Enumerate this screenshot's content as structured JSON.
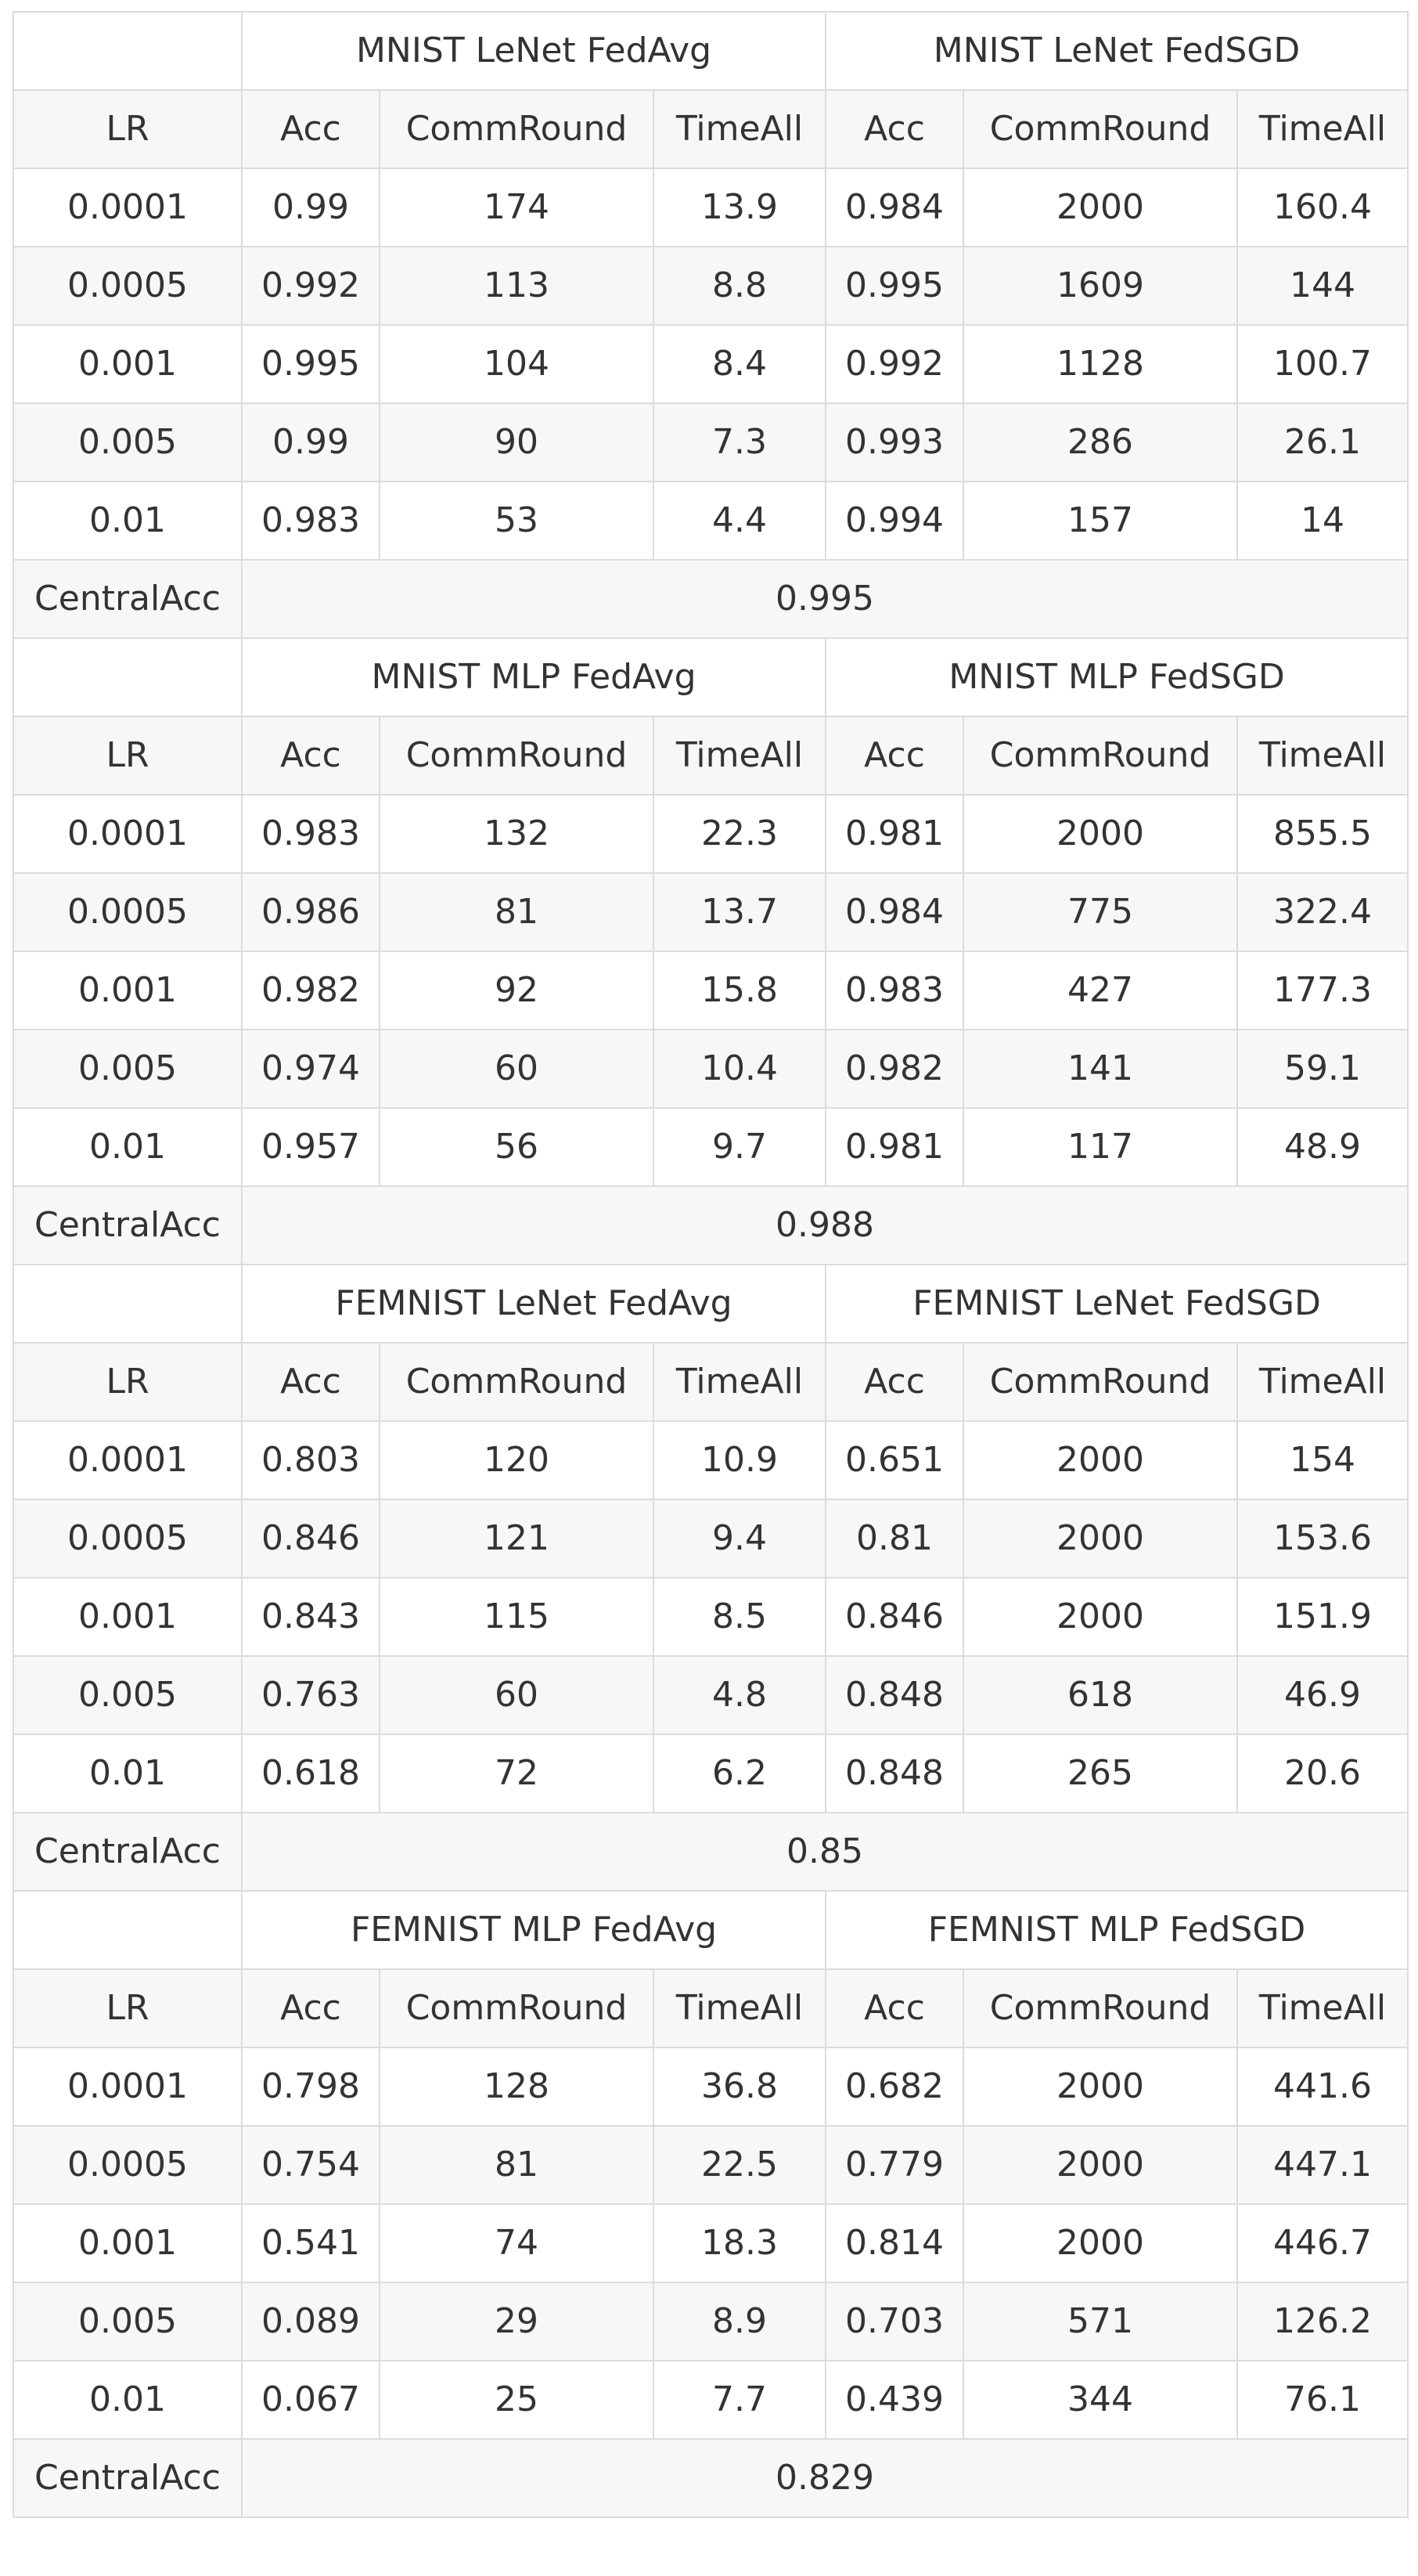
{
  "columns": {
    "lr": "LR",
    "acc": "Acc",
    "comm_round": "CommRound",
    "time_all": "TimeAll",
    "central_acc": "CentralAcc"
  },
  "blocks": [
    {
      "left_title": "MNIST LeNet FedAvg",
      "right_title": "MNIST LeNet FedSGD",
      "rows": [
        {
          "lr": "0.0001",
          "a_acc": "0.99",
          "a_round": "174",
          "a_time": "13.9",
          "b_acc": "0.984",
          "b_round": "2000",
          "b_time": "160.4"
        },
        {
          "lr": "0.0005",
          "a_acc": "0.992",
          "a_round": "113",
          "a_time": "8.8",
          "b_acc": "0.995",
          "b_round": "1609",
          "b_time": "144"
        },
        {
          "lr": "0.001",
          "a_acc": "0.995",
          "a_round": "104",
          "a_time": "8.4",
          "b_acc": "0.992",
          "b_round": "1128",
          "b_time": "100.7"
        },
        {
          "lr": "0.005",
          "a_acc": "0.99",
          "a_round": "90",
          "a_time": "7.3",
          "b_acc": "0.993",
          "b_round": "286",
          "b_time": "26.1"
        },
        {
          "lr": "0.01",
          "a_acc": "0.983",
          "a_round": "53",
          "a_time": "4.4",
          "b_acc": "0.994",
          "b_round": "157",
          "b_time": "14"
        }
      ],
      "central_acc": "0.995"
    },
    {
      "left_title": "MNIST MLP FedAvg",
      "right_title": "MNIST MLP FedSGD",
      "rows": [
        {
          "lr": "0.0001",
          "a_acc": "0.983",
          "a_round": "132",
          "a_time": "22.3",
          "b_acc": "0.981",
          "b_round": "2000",
          "b_time": "855.5"
        },
        {
          "lr": "0.0005",
          "a_acc": "0.986",
          "a_round": "81",
          "a_time": "13.7",
          "b_acc": "0.984",
          "b_round": "775",
          "b_time": "322.4"
        },
        {
          "lr": "0.001",
          "a_acc": "0.982",
          "a_round": "92",
          "a_time": "15.8",
          "b_acc": "0.983",
          "b_round": "427",
          "b_time": "177.3"
        },
        {
          "lr": "0.005",
          "a_acc": "0.974",
          "a_round": "60",
          "a_time": "10.4",
          "b_acc": "0.982",
          "b_round": "141",
          "b_time": "59.1"
        },
        {
          "lr": "0.01",
          "a_acc": "0.957",
          "a_round": "56",
          "a_time": "9.7",
          "b_acc": "0.981",
          "b_round": "117",
          "b_time": "48.9"
        }
      ],
      "central_acc": "0.988"
    },
    {
      "left_title": "FEMNIST LeNet FedAvg",
      "right_title": "FEMNIST LeNet FedSGD",
      "rows": [
        {
          "lr": "0.0001",
          "a_acc": "0.803",
          "a_round": "120",
          "a_time": "10.9",
          "b_acc": "0.651",
          "b_round": "2000",
          "b_time": "154"
        },
        {
          "lr": "0.0005",
          "a_acc": "0.846",
          "a_round": "121",
          "a_time": "9.4",
          "b_acc": "0.81",
          "b_round": "2000",
          "b_time": "153.6"
        },
        {
          "lr": "0.001",
          "a_acc": "0.843",
          "a_round": "115",
          "a_time": "8.5",
          "b_acc": "0.846",
          "b_round": "2000",
          "b_time": "151.9"
        },
        {
          "lr": "0.005",
          "a_acc": "0.763",
          "a_round": "60",
          "a_time": "4.8",
          "b_acc": "0.848",
          "b_round": "618",
          "b_time": "46.9"
        },
        {
          "lr": "0.01",
          "a_acc": "0.618",
          "a_round": "72",
          "a_time": "6.2",
          "b_acc": "0.848",
          "b_round": "265",
          "b_time": "20.6"
        }
      ],
      "central_acc": "0.85"
    },
    {
      "left_title": "FEMNIST MLP FedAvg",
      "right_title": "FEMNIST MLP FedSGD",
      "rows": [
        {
          "lr": "0.0001",
          "a_acc": "0.798",
          "a_round": "128",
          "a_time": "36.8",
          "b_acc": "0.682",
          "b_round": "2000",
          "b_time": "441.6"
        },
        {
          "lr": "0.0005",
          "a_acc": "0.754",
          "a_round": "81",
          "a_time": "22.5",
          "b_acc": "0.779",
          "b_round": "2000",
          "b_time": "447.1"
        },
        {
          "lr": "0.001",
          "a_acc": "0.541",
          "a_round": "74",
          "a_time": "18.3",
          "b_acc": "0.814",
          "b_round": "2000",
          "b_time": "446.7"
        },
        {
          "lr": "0.005",
          "a_acc": "0.089",
          "a_round": "29",
          "a_time": "8.9",
          "b_acc": "0.703",
          "b_round": "571",
          "b_time": "126.2"
        },
        {
          "lr": "0.01",
          "a_acc": "0.067",
          "a_round": "25",
          "a_time": "7.7",
          "b_acc": "0.439",
          "b_round": "344",
          "b_time": "76.1"
        }
      ],
      "central_acc": "0.829"
    }
  ]
}
